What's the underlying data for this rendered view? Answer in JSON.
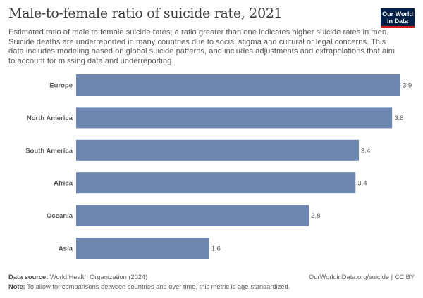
{
  "header": {
    "title": "Male-to-female ratio of suicide rate, 2021",
    "subtitle": "Estimated ratio of male to female suicide rates; a ratio greater than one indicates higher suicide rates in men. Suicide deaths are underreported in many countries due to social stigma and cultural or legal concerns. This data includes modeling based on global suicide patterns, and includes adjustments and extrapolations that aim to account for missing data and underreporting.",
    "logo": "Our World in Data"
  },
  "chart_data": {
    "type": "bar",
    "orientation": "horizontal",
    "title": "Male-to-female ratio of suicide rate, 2021",
    "categories": [
      "Europe",
      "North America",
      "South America",
      "Africa",
      "Oceania",
      "Asia"
    ],
    "values": [
      3.9,
      3.8,
      3.4,
      3.36,
      2.8,
      1.6
    ],
    "labels": [
      "3.9",
      "3.8",
      "3.4",
      "3.4",
      "2.8",
      "1.6"
    ],
    "xlim": [
      0,
      3.9
    ],
    "color": "#6d87b0",
    "grid": false
  },
  "footer": {
    "source_label": "Data source:",
    "source": "World Health Organization (2024)",
    "url": "OurWorldinData.org/suicide | CC BY",
    "note_label": "Note:",
    "note": "To allow for comparisons between countries and over time, this metric is age-standardized."
  }
}
